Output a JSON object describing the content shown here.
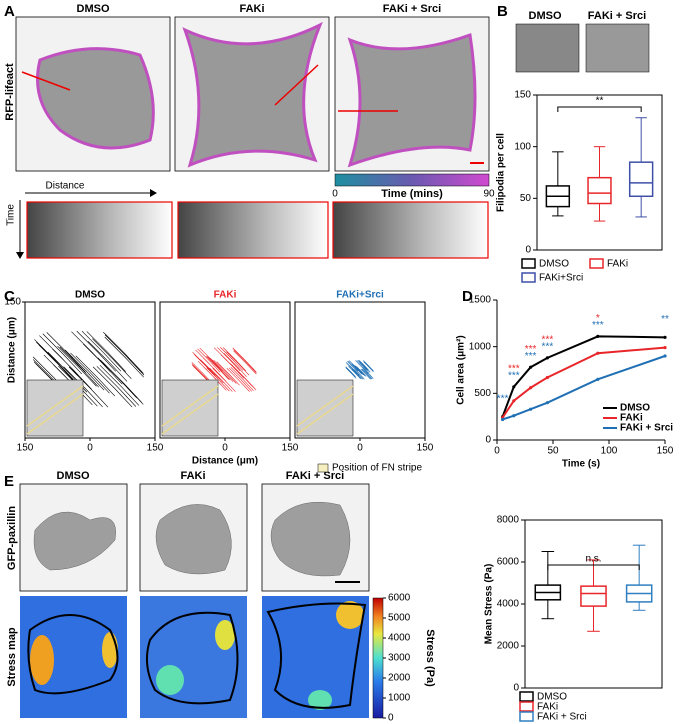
{
  "panel_labels": [
    "A",
    "B",
    "C",
    "D",
    "E"
  ],
  "panel_a": {
    "conditions": [
      "DMSO",
      "FAKi",
      "FAKi + Srci"
    ],
    "row_label": "RFP-lifeact",
    "colorbar_label": "Time (mins)",
    "colorbar_ticks": [
      0,
      90
    ],
    "distance_label": "Distance",
    "time_label": "Time"
  },
  "panel_b": {
    "conditions": [
      "DMSO",
      "FAKi + Srci"
    ]
  },
  "panel_e": {
    "conditions": [
      "DMSO",
      "FAKi",
      "FAKi + Srci"
    ],
    "row_labels": [
      "GFP-paxillin",
      "Stress map"
    ],
    "colorbar_label": "Stress (Pa)",
    "colorbar_ticks": [
      0,
      1000,
      2000,
      3000,
      4000,
      5000,
      6000
    ]
  },
  "chart_data": [
    {
      "type": "box",
      "ylabel": "Filipodia per cell",
      "ylim": [
        0,
        150
      ],
      "yticks": [
        0,
        50,
        100,
        150
      ],
      "significance_label": "**",
      "series": [
        {
          "name": "DMSO",
          "color": "#000000",
          "min": 33,
          "q1": 42,
          "median": 52,
          "q3": 62,
          "max": 95
        },
        {
          "name": "FAKi",
          "color": "#e8262a",
          "min": 28,
          "q1": 45,
          "median": 55,
          "q3": 70,
          "max": 100
        },
        {
          "name": "FAKi+Srci",
          "color": "#3f4fa8",
          "min": 32,
          "q1": 52,
          "median": 65,
          "q3": 85,
          "max": 128
        }
      ]
    },
    {
      "type": "trajectory",
      "xlabel": "Distance (μm)",
      "ylabel": "Distance (μm)",
      "legend": "Position of FN stripe",
      "xlim": [
        -150,
        150
      ],
      "xticks": [
        {
          "value": -150,
          "label": "150"
        },
        0,
        150
      ],
      "ylim": [
        -150,
        150
      ],
      "yticks": [
        150
      ],
      "panels": [
        {
          "title": "DMSO",
          "color": "#000000"
        },
        {
          "title": "FAKi",
          "color": "#e8262a"
        },
        {
          "title": "FAKi+Srci",
          "color": "#1f6fb4"
        }
      ]
    },
    {
      "type": "line",
      "xlabel": "Time (s)",
      "ylabel": "Cell area (μm²)",
      "xlim": [
        0,
        150
      ],
      "xticks": [
        0,
        50,
        100,
        150
      ],
      "ylim": [
        0,
        1500
      ],
      "yticks": [
        0,
        500,
        1000,
        1500
      ],
      "x": [
        5,
        15,
        30,
        45,
        90,
        150
      ],
      "series": [
        {
          "name": "DMSO",
          "color": "#000000",
          "values": [
            250,
            570,
            780,
            880,
            1110,
            1100
          ]
        },
        {
          "name": "FAKi",
          "color": "#e8262a",
          "values": [
            240,
            420,
            560,
            670,
            930,
            990
          ]
        },
        {
          "name": "FAKi + Srci",
          "color": "#1f6fb4",
          "values": [
            220,
            260,
            330,
            400,
            650,
            900
          ]
        }
      ],
      "annotations": [
        {
          "x": 5,
          "text": "***",
          "color": "#1f6fb4"
        },
        {
          "x": 15,
          "text": "***",
          "color": "#e8262a"
        },
        {
          "x": 15,
          "text": "***",
          "color": "#1f6fb4"
        },
        {
          "x": 30,
          "text": "***",
          "color": "#e8262a"
        },
        {
          "x": 30,
          "text": "***",
          "color": "#1f6fb4"
        },
        {
          "x": 45,
          "text": "***",
          "color": "#e8262a"
        },
        {
          "x": 45,
          "text": "***",
          "color": "#1f6fb4"
        },
        {
          "x": 90,
          "text": "*",
          "color": "#e8262a"
        },
        {
          "x": 90,
          "text": "***",
          "color": "#1f6fb4"
        },
        {
          "x": 150,
          "text": "**",
          "color": "#1f6fb4"
        }
      ]
    },
    {
      "type": "box",
      "ylabel": "Mean Stress (Pa)",
      "ylim": [
        0,
        8000
      ],
      "yticks": [
        0,
        2000,
        4000,
        6000,
        8000
      ],
      "significance_label": "n.s.",
      "series": [
        {
          "name": "DMSO",
          "color": "#000000",
          "min": 3300,
          "q1": 4200,
          "median": 4550,
          "q3": 4900,
          "max": 6500
        },
        {
          "name": "FAKi",
          "color": "#e8262a",
          "min": 2700,
          "q1": 3900,
          "median": 4500,
          "q3": 4850,
          "max": 6100
        },
        {
          "name": "FAKi + Srci",
          "color": "#2f7fc1",
          "min": 3700,
          "q1": 4100,
          "median": 4500,
          "q3": 4900,
          "max": 6800
        }
      ]
    }
  ]
}
